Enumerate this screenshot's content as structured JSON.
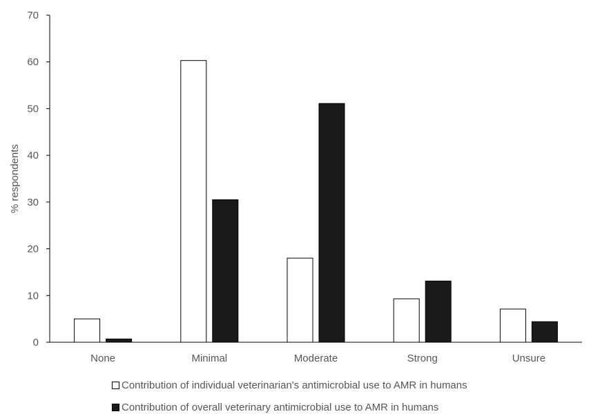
{
  "chart_data": {
    "type": "bar",
    "title": "",
    "xlabel": "",
    "ylabel": "% respondents",
    "ylim": [
      0,
      70
    ],
    "yticks": [
      0,
      10,
      20,
      30,
      40,
      50,
      60,
      70
    ],
    "categories": [
      "None",
      "Minimal",
      "Moderate",
      "Strong",
      "Unsure"
    ],
    "series": [
      {
        "name": "Contribution of individual veterinarian's antimicrobial use to AMR in humans",
        "values": [
          5.0,
          60.3,
          18.0,
          9.3,
          7.1
        ],
        "fill": "#ffffff",
        "stroke": "#000000"
      },
      {
        "name": "Contribution of overall veterinary antimicrobial use to AMR in humans",
        "values": [
          0.7,
          30.5,
          51.1,
          13.1,
          4.4
        ],
        "fill": "#1a1a1a",
        "stroke": "#000000"
      }
    ],
    "grid": false,
    "legend_position": "bottom"
  }
}
